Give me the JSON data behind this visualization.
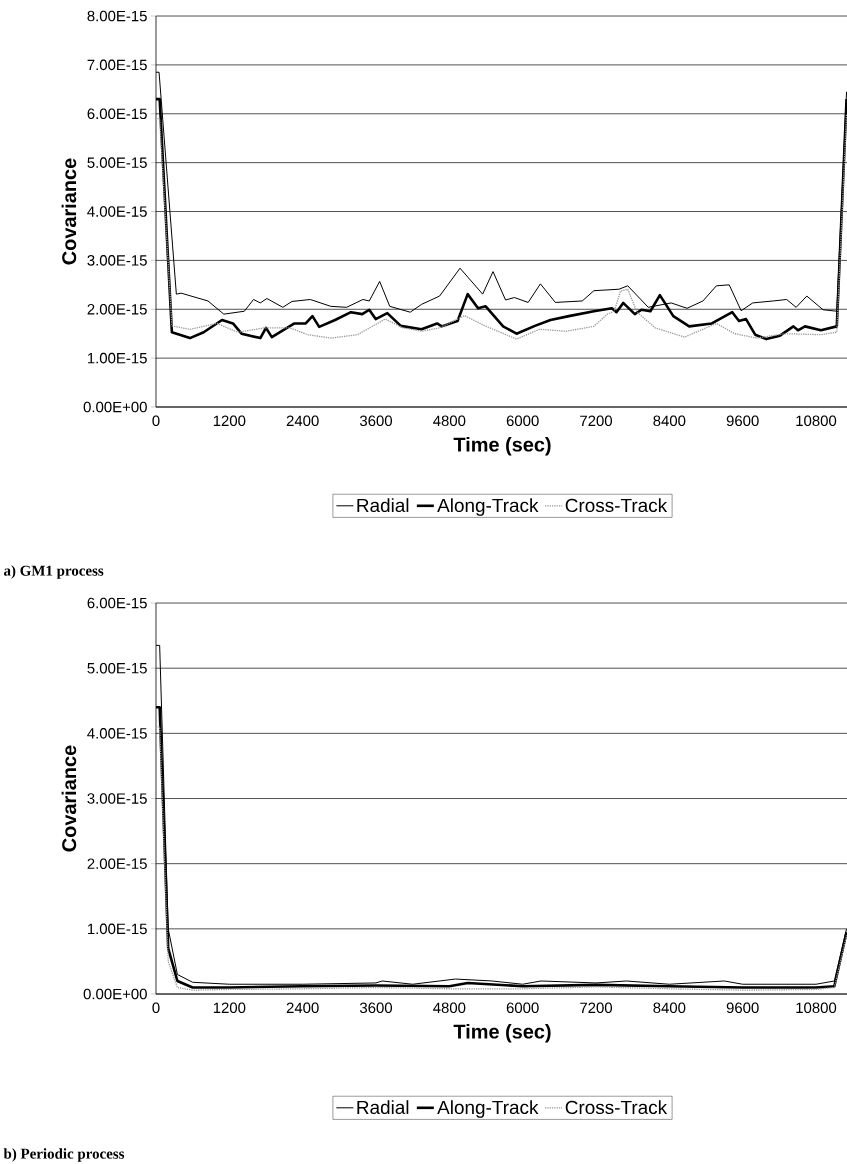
{
  "chart_data": [
    {
      "type": "line",
      "xlabel": "Time (sec)",
      "ylabel": "Covariance",
      "annotations": [
        "a) GM1 process"
      ],
      "grid": "y",
      "legend": "bottom",
      "xlim": [
        0,
        11340
      ],
      "xticks": [
        0,
        1200,
        2400,
        3600,
        4800,
        6000,
        7200,
        8400,
        9600,
        10800
      ],
      "ylim": [
        0,
        8e-15
      ],
      "yticks": [
        {
          "value": 0,
          "label": "0.00E+00"
        },
        {
          "value": 1e-15,
          "label": "1.00E-15"
        },
        {
          "value": 2e-15,
          "label": "2.00E-15"
        },
        {
          "value": 3e-15,
          "label": "3.00E-15"
        },
        {
          "value": 4e-15,
          "label": "4.00E-15"
        },
        {
          "value": 5e-15,
          "label": "5.00E-15"
        },
        {
          "value": 6e-15,
          "label": "6.00E-15"
        },
        {
          "value": 7e-15,
          "label": "7.00E-15"
        },
        {
          "value": 8e-15,
          "label": "8.00E-15"
        }
      ],
      "series": [
        {
          "name": "Radial",
          "color": "#000000",
          "line_style": "solid",
          "x": [
            0,
            50,
            333,
            410,
            850,
            1110,
            1446,
            1595,
            1707,
            1815,
            2075,
            2225,
            2525,
            2860,
            3120,
            3385,
            3490,
            3660,
            3825,
            4160,
            4345,
            4640,
            4975,
            5345,
            5515,
            5720,
            5865,
            6090,
            6290,
            6535,
            6975,
            7165,
            7575,
            7720,
            8055,
            8430,
            8690,
            8950,
            9170,
            9380,
            9575,
            9765,
            10100,
            10320,
            10475,
            10650,
            10915,
            11140,
            11300
          ],
          "values": [
            6.85e-15,
            6.85e-15,
            2.31e-15,
            2.33e-15,
            2.17e-15,
            1.9e-15,
            1.96e-15,
            2.2e-15,
            2.13e-15,
            2.22e-15,
            2.04e-15,
            2.16e-15,
            2.2e-15,
            2.06e-15,
            2.04e-15,
            2.2e-15,
            2.17e-15,
            2.57e-15,
            2.06e-15,
            1.94e-15,
            2.1e-15,
            2.27e-15,
            2.84e-15,
            2.31e-15,
            2.77e-15,
            2.19e-15,
            2.24e-15,
            2.14e-15,
            2.52e-15,
            2.14e-15,
            2.17e-15,
            2.38e-15,
            2.41e-15,
            2.48e-15,
            2.04e-15,
            2.13e-15,
            2.02e-15,
            2.17e-15,
            2.48e-15,
            2.5e-15,
            1.97e-15,
            2.13e-15,
            2.17e-15,
            2.2e-15,
            2.04e-15,
            2.27e-15,
            1.99e-15,
            1.96e-15,
            6.45e-15
          ]
        },
        {
          "name": "Along-Track",
          "color": "#000000",
          "line_style": "solid",
          "x": [
            0,
            60,
            260,
            555,
            780,
            1080,
            1260,
            1400,
            1707,
            1800,
            1895,
            2265,
            2450,
            2560,
            2670,
            2930,
            3190,
            3375,
            3490,
            3595,
            3785,
            4005,
            4345,
            4600,
            4675,
            4935,
            5100,
            5270,
            5395,
            5680,
            5900,
            6200,
            6455,
            6755,
            7165,
            7460,
            7535,
            7645,
            7835,
            7945,
            8090,
            8245,
            8465,
            8725,
            9095,
            9430,
            9540,
            9655,
            9805,
            9985,
            10210,
            10430,
            10505,
            10620,
            10880,
            11140,
            11300
          ],
          "values": [
            6.3e-15,
            6.3e-15,
            1.53e-15,
            1.41e-15,
            1.53e-15,
            1.78e-15,
            1.71e-15,
            1.5e-15,
            1.41e-15,
            1.62e-15,
            1.43e-15,
            1.71e-15,
            1.71e-15,
            1.86e-15,
            1.64e-15,
            1.78e-15,
            1.94e-15,
            1.9e-15,
            1.99e-15,
            1.8e-15,
            1.92e-15,
            1.66e-15,
            1.59e-15,
            1.71e-15,
            1.65e-15,
            1.76e-15,
            2.31e-15,
            2.02e-15,
            2.06e-15,
            1.65e-15,
            1.5e-15,
            1.66e-15,
            1.78e-15,
            1.86e-15,
            1.96e-15,
            2.02e-15,
            1.94e-15,
            2.13e-15,
            1.9e-15,
            1.99e-15,
            1.96e-15,
            2.29e-15,
            1.86e-15,
            1.65e-15,
            1.71e-15,
            1.94e-15,
            1.76e-15,
            1.8e-15,
            1.48e-15,
            1.39e-15,
            1.46e-15,
            1.65e-15,
            1.57e-15,
            1.65e-15,
            1.57e-15,
            1.65e-15,
            6.3e-15
          ]
        },
        {
          "name": "Cross-Track",
          "color": "#999999",
          "line_style": "dotted",
          "x": [
            0,
            60,
            260,
            555,
            1000,
            1335,
            1780,
            2190,
            2485,
            2860,
            3300,
            3750,
            4045,
            4345,
            4640,
            5050,
            5385,
            5900,
            6275,
            6715,
            7165,
            7385,
            7500,
            7600,
            7720,
            7870,
            8170,
            8650,
            9170,
            9470,
            9835,
            10285,
            10880,
            11140,
            11300
          ],
          "values": [
            5.9e-15,
            5.9e-15,
            1.66e-15,
            1.59e-15,
            1.71e-15,
            1.53e-15,
            1.62e-15,
            1.62e-15,
            1.48e-15,
            1.41e-15,
            1.48e-15,
            1.8e-15,
            1.62e-15,
            1.55e-15,
            1.62e-15,
            1.87e-15,
            1.66e-15,
            1.39e-15,
            1.59e-15,
            1.55e-15,
            1.65e-15,
            1.9e-15,
            1.96e-15,
            2.37e-15,
            2.41e-15,
            1.94e-15,
            1.62e-15,
            1.43e-15,
            1.71e-15,
            1.5e-15,
            1.41e-15,
            1.5e-15,
            1.48e-15,
            1.53e-15,
            6e-15
          ]
        }
      ]
    },
    {
      "type": "line",
      "xlabel": "Time (sec)",
      "ylabel": "Covariance",
      "annotations": [
        "b) Periodic process"
      ],
      "grid": "y",
      "legend": "bottom",
      "xlim": [
        0,
        11340
      ],
      "xticks": [
        0,
        1200,
        2400,
        3600,
        4800,
        6000,
        7200,
        8400,
        9600,
        10800
      ],
      "ylim": [
        0,
        6e-15
      ],
      "yticks": [
        {
          "value": 0,
          "label": "0.00E+00"
        },
        {
          "value": 1e-15,
          "label": "1.00E-15"
        },
        {
          "value": 2e-15,
          "label": "2.00E-15"
        },
        {
          "value": 3e-15,
          "label": "3.00E-15"
        },
        {
          "value": 4e-15,
          "label": "4.00E-15"
        },
        {
          "value": 5e-15,
          "label": "5.00E-15"
        },
        {
          "value": 6e-15,
          "label": "6.00E-15"
        }
      ],
      "series": [
        {
          "name": "Radial",
          "color": "#000000",
          "line_style": "solid",
          "x": [
            0,
            60,
            200,
            350,
            600,
            1200,
            2400,
            3600,
            3700,
            4200,
            4900,
            5500,
            6000,
            6300,
            7200,
            7700,
            8400,
            9300,
            9600,
            10800,
            11100,
            11300
          ],
          "values": [
            5.35e-15,
            5.35e-15,
            1e-15,
            3e-16,
            1.8e-16,
            1.5e-16,
            1.5e-16,
            1.7e-16,
            2e-16,
            1.5e-16,
            2.3e-16,
            2e-16,
            1.5e-16,
            2e-16,
            1.7e-16,
            2e-16,
            1.5e-16,
            2e-16,
            1.5e-16,
            1.5e-16,
            2e-16,
            1e-15
          ]
        },
        {
          "name": "Along-Track",
          "color": "#000000",
          "line_style": "solid",
          "x": [
            0,
            60,
            200,
            350,
            600,
            1200,
            2400,
            3600,
            4800,
            5100,
            6000,
            7200,
            8400,
            9600,
            10800,
            11100,
            11300
          ],
          "values": [
            4.4e-15,
            4.4e-15,
            7e-16,
            2e-16,
            1e-16,
            1e-16,
            1.2e-16,
            1.3e-16,
            1.2e-16,
            1.7e-16,
            1.2e-16,
            1.4e-16,
            1.2e-16,
            1e-16,
            1e-16,
            1.2e-16,
            9.5e-16
          ]
        },
        {
          "name": "Cross-Track",
          "color": "#999999",
          "line_style": "dotted",
          "x": [
            0,
            60,
            200,
            350,
            600,
            1200,
            2400,
            3600,
            4800,
            6000,
            7200,
            8400,
            9600,
            10800,
            11100,
            11300
          ],
          "values": [
            4.1e-15,
            4.1e-15,
            5e-16,
            1e-16,
            6e-17,
            7e-17,
            8e-17,
            1e-16,
            8e-17,
            8e-17,
            1.1e-16,
            8e-17,
            6e-17,
            7e-17,
            1e-16,
            9e-16
          ]
        }
      ]
    }
  ]
}
